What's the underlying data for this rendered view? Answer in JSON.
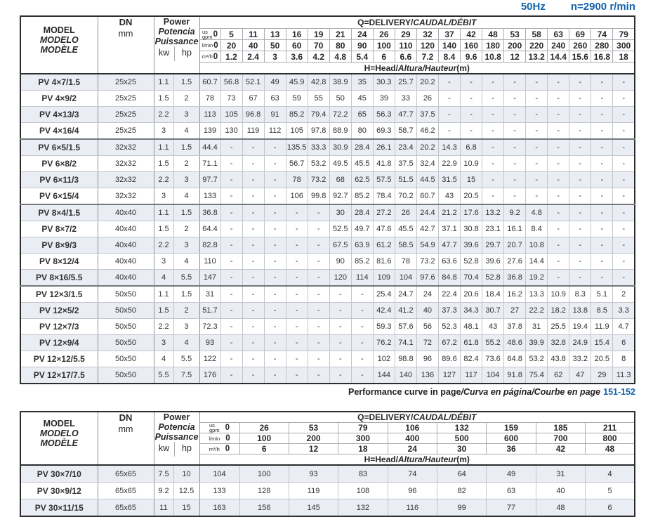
{
  "page_header": {
    "frequency": "50Hz",
    "speed": "n=2900 r/min"
  },
  "colors": {
    "accent_blue": "#1463ac"
  },
  "labels": {
    "model": [
      "MODEL",
      "MODELO",
      "MODÈLE"
    ],
    "dn": "DN",
    "dn_unit": "mm",
    "power": [
      "Power",
      "Potencia",
      "Puissance"
    ],
    "kw": "kw",
    "hp": "hp",
    "q_plain": "Q=DELIVERY/",
    "q_italic": "CAUDAL/DÉBIT",
    "h_plain": "H=Head/",
    "h_italic": "Altura/Hauteur",
    "h_unit": "(m)",
    "gpm_top": "us",
    "gpm": "gpm",
    "lmin": "l/min",
    "m3h": "m³/h"
  },
  "note": {
    "part1": "Performance curve in page",
    "part2": "/Curva en página/Courbe en page",
    "pages": "151-152"
  },
  "table1": {
    "flow": {
      "gpm": [
        "0",
        "5",
        "11",
        "13",
        "16",
        "19",
        "21",
        "24",
        "26",
        "29",
        "32",
        "37",
        "42",
        "48",
        "53",
        "58",
        "63",
        "69",
        "74",
        "79"
      ],
      "lmin": [
        "0",
        "20",
        "40",
        "50",
        "60",
        "70",
        "80",
        "90",
        "100",
        "110",
        "120",
        "140",
        "160",
        "180",
        "200",
        "220",
        "240",
        "260",
        "280",
        "300"
      ],
      "m3h": [
        "0",
        "1.2",
        "2.4",
        "3",
        "3.6",
        "4.2",
        "4.8",
        "5.4",
        "6",
        "6.6",
        "7.2",
        "8.4",
        "9.6",
        "10.8",
        "12",
        "13.2",
        "14.4",
        "15.6",
        "16.8",
        "18"
      ]
    },
    "rows": [
      {
        "model": "PV 4×7/1.5",
        "dn": "25x25",
        "kw": "1.1",
        "hp": "1.5",
        "group_start": false,
        "heads": [
          "60.7",
          "56.8",
          "52.1",
          "49",
          "45.9",
          "42.8",
          "38.9",
          "35",
          "30.3",
          "25.7",
          "20.2",
          "-",
          "-",
          "-",
          "-",
          "-",
          "-",
          "-",
          "-",
          "-"
        ]
      },
      {
        "model": "PV 4×9/2",
        "dn": "25x25",
        "kw": "1.5",
        "hp": "2",
        "group_start": false,
        "heads": [
          "78",
          "73",
          "67",
          "63",
          "59",
          "55",
          "50",
          "45",
          "39",
          "33",
          "26",
          "-",
          "-",
          "-",
          "-",
          "-",
          "-",
          "-",
          "-",
          "-"
        ]
      },
      {
        "model": "PV 4×13/3",
        "dn": "25x25",
        "kw": "2.2",
        "hp": "3",
        "group_start": false,
        "heads": [
          "113",
          "105",
          "96.8",
          "91",
          "85.2",
          "79.4",
          "72.2",
          "65",
          "56.3",
          "47.7",
          "37.5",
          "-",
          "-",
          "-",
          "-",
          "-",
          "-",
          "-",
          "-",
          "-"
        ]
      },
      {
        "model": "PV 4×16/4",
        "dn": "25x25",
        "kw": "3",
        "hp": "4",
        "group_start": false,
        "heads": [
          "139",
          "130",
          "119",
          "112",
          "105",
          "97.8",
          "88.9",
          "80",
          "69.3",
          "58.7",
          "46.2",
          "-",
          "-",
          "-",
          "-",
          "-",
          "-",
          "-",
          "-",
          "-"
        ]
      },
      {
        "model": "PV 6×5/1.5",
        "dn": "32x32",
        "kw": "1.1",
        "hp": "1.5",
        "group_start": true,
        "heads": [
          "44.4",
          "-",
          "-",
          "-",
          "135.5",
          "33.3",
          "30.9",
          "28.4",
          "26.1",
          "23.4",
          "20.2",
          "14.3",
          "6.8",
          "-",
          "-",
          "-",
          "-",
          "-",
          "-",
          "-"
        ]
      },
      {
        "model": "PV 6×8/2",
        "dn": "32x32",
        "kw": "1.5",
        "hp": "2",
        "group_start": false,
        "heads": [
          "71.1",
          "-",
          "-",
          "-",
          "56.7",
          "53.2",
          "49.5",
          "45.5",
          "41.8",
          "37.5",
          "32.4",
          "22.9",
          "10.9",
          "-",
          "-",
          "-",
          "-",
          "-",
          "-",
          "-"
        ]
      },
      {
        "model": "PV 6×11/3",
        "dn": "32x32",
        "kw": "2.2",
        "hp": "3",
        "group_start": false,
        "heads": [
          "97.7",
          "-",
          "-",
          "-",
          "78",
          "73.2",
          "68",
          "62.5",
          "57.5",
          "51.5",
          "44.5",
          "31.5",
          "15",
          "-",
          "-",
          "-",
          "-",
          "-",
          "-",
          "-"
        ]
      },
      {
        "model": "PV 6×15/4",
        "dn": "32x32",
        "kw": "3",
        "hp": "4",
        "group_start": false,
        "heads": [
          "133",
          "-",
          "-",
          "-",
          "106",
          "99.8",
          "92.7",
          "85.2",
          "78.4",
          "70.2",
          "60.7",
          "43",
          "20.5",
          "-",
          "-",
          "-",
          "-",
          "-",
          "-",
          "-"
        ]
      },
      {
        "model": "PV 8×4/1.5",
        "dn": "40x40",
        "kw": "1.1",
        "hp": "1.5",
        "group_start": true,
        "heads": [
          "36.8",
          "-",
          "-",
          "-",
          "-",
          "-",
          "30",
          "28.4",
          "27.2",
          "26",
          "24.4",
          "21.2",
          "17.6",
          "13.2",
          "9.2",
          "4.8",
          "-",
          "-",
          "-",
          "-"
        ]
      },
      {
        "model": "PV 8×7/2",
        "dn": "40x40",
        "kw": "1.5",
        "hp": "2",
        "group_start": false,
        "heads": [
          "64.4",
          "-",
          "-",
          "-",
          "-",
          "-",
          "52.5",
          "49.7",
          "47.6",
          "45.5",
          "42.7",
          "37.1",
          "30.8",
          "23.1",
          "16.1",
          "8.4",
          "-",
          "-",
          "-",
          "-"
        ]
      },
      {
        "model": "PV 8×9/3",
        "dn": "40x40",
        "kw": "2.2",
        "hp": "3",
        "group_start": false,
        "heads": [
          "82.8",
          "-",
          "-",
          "-",
          "-",
          "-",
          "67.5",
          "63.9",
          "61.2",
          "58.5",
          "54.9",
          "47.7",
          "39.6",
          "29.7",
          "20.7",
          "10.8",
          "-",
          "-",
          "-",
          "-"
        ]
      },
      {
        "model": "PV 8×12/4",
        "dn": "40x40",
        "kw": "3",
        "hp": "4",
        "group_start": false,
        "heads": [
          "110",
          "-",
          "-",
          "-",
          "-",
          "-",
          "90",
          "85.2",
          "81.6",
          "78",
          "73.2",
          "63.6",
          "52.8",
          "39.6",
          "27.6",
          "14.4",
          "-",
          "-",
          "-",
          "-"
        ]
      },
      {
        "model": "PV 8×16/5.5",
        "dn": "40x40",
        "kw": "4",
        "hp": "5.5",
        "group_start": false,
        "heads": [
          "147",
          "-",
          "-",
          "-",
          "-",
          "-",
          "120",
          "114",
          "109",
          "104",
          "97.6",
          "84.8",
          "70.4",
          "52.8",
          "36.8",
          "19.2",
          "-",
          "-",
          "-",
          "-"
        ]
      },
      {
        "model": "PV 12×3/1.5",
        "dn": "50x50",
        "kw": "1.1",
        "hp": "1.5",
        "group_start": true,
        "heads": [
          "31",
          "-",
          "-",
          "-",
          "-",
          "-",
          "-",
          "-",
          "25.4",
          "24.7",
          "24",
          "22.4",
          "20.6",
          "18.4",
          "16.2",
          "13.3",
          "10.9",
          "8.3",
          "5.1",
          "2"
        ]
      },
      {
        "model": "PV 12×5/2",
        "dn": "50x50",
        "kw": "1.5",
        "hp": "2",
        "group_start": false,
        "heads": [
          "51.7",
          "-",
          "-",
          "-",
          "-",
          "-",
          "-",
          "-",
          "42.4",
          "41.2",
          "40",
          "37.3",
          "34.3",
          "30.7",
          "27",
          "22.2",
          "18.2",
          "13.8",
          "8.5",
          "3.3"
        ]
      },
      {
        "model": "PV 12×7/3",
        "dn": "50x50",
        "kw": "2.2",
        "hp": "3",
        "group_start": false,
        "heads": [
          "72.3",
          "-",
          "-",
          "-",
          "-",
          "-",
          "-",
          "-",
          "59.3",
          "57.6",
          "56",
          "52.3",
          "48.1",
          "43",
          "37.8",
          "31",
          "25.5",
          "19.4",
          "11.9",
          "4.7"
        ]
      },
      {
        "model": "PV 12×9/4",
        "dn": "50x50",
        "kw": "3",
        "hp": "4",
        "group_start": false,
        "heads": [
          "93",
          "-",
          "-",
          "-",
          "-",
          "-",
          "-",
          "-",
          "76.2",
          "74.1",
          "72",
          "67.2",
          "61.8",
          "55.2",
          "48.6",
          "39.9",
          "32.8",
          "24.9",
          "15.4",
          "6"
        ]
      },
      {
        "model": "PV 12×12/5.5",
        "dn": "50x50",
        "kw": "4",
        "hp": "5.5",
        "group_start": false,
        "heads": [
          "122",
          "-",
          "-",
          "-",
          "-",
          "-",
          "-",
          "-",
          "102",
          "98.8",
          "96",
          "89.6",
          "82.4",
          "73.6",
          "64.8",
          "53.2",
          "43.8",
          "33.2",
          "20.5",
          "8"
        ]
      },
      {
        "model": "PV 12×17/7.5",
        "dn": "50x50",
        "kw": "5.5",
        "hp": "7.5",
        "group_start": false,
        "heads": [
          "176",
          "-",
          "-",
          "-",
          "-",
          "-",
          "-",
          "-",
          "144",
          "140",
          "136",
          "127",
          "117",
          "104",
          "91.8",
          "75.4",
          "62",
          "47",
          "29",
          "11.3"
        ]
      }
    ]
  },
  "table2": {
    "flow": {
      "gpm": [
        "0",
        "26",
        "53",
        "79",
        "106",
        "132",
        "159",
        "185",
        "211"
      ],
      "lmin": [
        "0",
        "100",
        "200",
        "300",
        "400",
        "500",
        "600",
        "700",
        "800"
      ],
      "m3h": [
        "0",
        "6",
        "12",
        "18",
        "24",
        "30",
        "36",
        "42",
        "48"
      ]
    },
    "rows": [
      {
        "model": "PV 30×7/10",
        "dn": "65x65",
        "kw": "7.5",
        "hp": "10",
        "group_start": false,
        "heads": [
          "104",
          "100",
          "93",
          "83",
          "74",
          "64",
          "49",
          "31",
          "4"
        ]
      },
      {
        "model": "PV 30×9/12",
        "dn": "65x65",
        "kw": "9.2",
        "hp": "12.5",
        "group_start": false,
        "heads": [
          "133",
          "128",
          "119",
          "108",
          "96",
          "82",
          "63",
          "40",
          "5"
        ]
      },
      {
        "model": "PV 30×11/15",
        "dn": "65x65",
        "kw": "11",
        "hp": "15",
        "group_start": false,
        "heads": [
          "163",
          "156",
          "145",
          "132",
          "116",
          "99",
          "77",
          "48",
          "6"
        ]
      }
    ]
  }
}
